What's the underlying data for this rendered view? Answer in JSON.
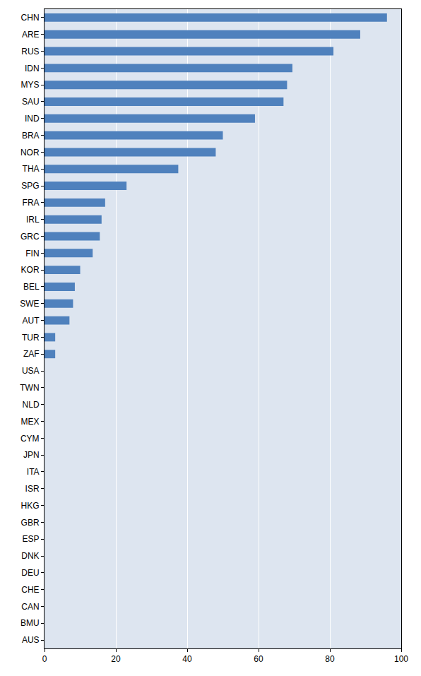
{
  "chart_data": {
    "type": "bar",
    "orientation": "horizontal",
    "categories": [
      "CHN",
      "ARE",
      "RUS",
      "IDN",
      "MYS",
      "SAU",
      "IND",
      "BRA",
      "NOR",
      "THA",
      "SPG",
      "FRA",
      "IRL",
      "GRC",
      "FIN",
      "KOR",
      "BEL",
      "SWE",
      "AUT",
      "TUR",
      "ZAF",
      "USA",
      "TWN",
      "NLD",
      "MEX",
      "CYM",
      "JPN",
      "ITA",
      "ISR",
      "HKG",
      "GBR",
      "ESP",
      "DNK",
      "DEU",
      "CHE",
      "CAN",
      "BMU",
      "AUS"
    ],
    "values": [
      96,
      88.5,
      81,
      69.5,
      68,
      67,
      59,
      50,
      48,
      37.5,
      23,
      17,
      16,
      15.5,
      13.5,
      10,
      8.5,
      8,
      7,
      3,
      3,
      0,
      0,
      0,
      0,
      0,
      0,
      0,
      0,
      0,
      0,
      0,
      0,
      0,
      0,
      0,
      0,
      0
    ],
    "color": "#4f81bd",
    "xlim": [
      0,
      100
    ],
    "xticks": [
      0,
      20,
      40,
      60,
      80,
      100
    ],
    "grid": true
  }
}
